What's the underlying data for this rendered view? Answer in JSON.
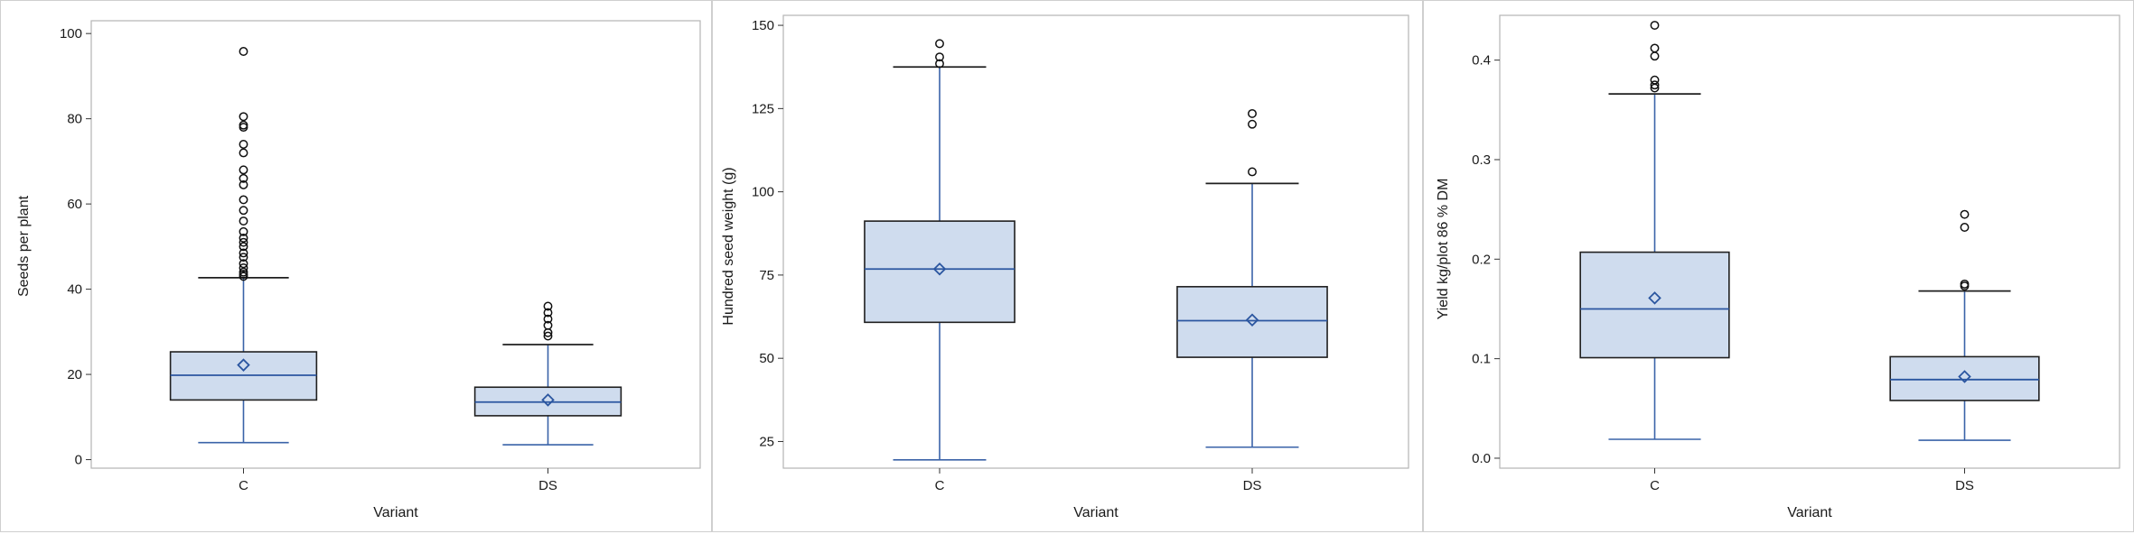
{
  "chart_data": [
    {
      "type": "box",
      "xlabel": "Variant",
      "ylabel": "Seeds per plant",
      "ylim": [
        -2,
        103
      ],
      "yticks": [
        0,
        20,
        40,
        60,
        80,
        100
      ],
      "categories": [
        "C",
        "DS"
      ],
      "boxes": [
        {
          "category": "C",
          "whisker_low": 4,
          "q1": 14,
          "median": 19.8,
          "q3": 25.3,
          "whisker_high": 42.7,
          "mean": 22.2,
          "outliers": [
            43,
            43.5,
            44,
            45,
            46,
            47.5,
            48.5,
            50,
            51,
            52,
            53.5,
            56,
            58.5,
            61,
            64.5,
            66,
            68,
            72,
            74,
            78,
            78.5,
            80.5,
            95.8
          ]
        },
        {
          "category": "DS",
          "whisker_low": 3.5,
          "q1": 10.3,
          "median": 13.5,
          "q3": 17,
          "whisker_high": 27,
          "mean": 14,
          "outliers": [
            29,
            29.8,
            31.5,
            33,
            34.5,
            36
          ]
        }
      ]
    },
    {
      "type": "box",
      "xlabel": "Variant",
      "ylabel": "Hundred seed weight (g)",
      "ylim": [
        17,
        153
      ],
      "yticks": [
        25,
        50,
        75,
        100,
        125,
        150
      ],
      "categories": [
        "C",
        "DS"
      ],
      "boxes": [
        {
          "category": "C",
          "whisker_low": 19.5,
          "q1": 60.8,
          "median": 76.8,
          "q3": 91.2,
          "whisker_high": 137.5,
          "mean": 76.8,
          "outliers": [
            138.5,
            140.5,
            144.5
          ]
        },
        {
          "category": "DS",
          "whisker_low": 23.3,
          "q1": 50.3,
          "median": 61.3,
          "q3": 71.5,
          "whisker_high": 102.5,
          "mean": 61.5,
          "outliers": [
            106,
            120.3,
            123.5
          ]
        }
      ]
    },
    {
      "type": "box",
      "xlabel": "Variant",
      "ylabel": "Yield kg/plot 86 % DM",
      "ylim": [
        -0.01,
        0.445
      ],
      "yticks": [
        0.0,
        0.1,
        0.2,
        0.3,
        0.4
      ],
      "ytick_labels": [
        "0.0",
        "0.1",
        "0.2",
        "0.3",
        "0.4"
      ],
      "categories": [
        "C",
        "DS"
      ],
      "boxes": [
        {
          "category": "C",
          "whisker_low": 0.019,
          "q1": 0.101,
          "median": 0.15,
          "q3": 0.207,
          "whisker_high": 0.366,
          "mean": 0.161,
          "outliers": [
            0.372,
            0.375,
            0.38,
            0.404,
            0.412,
            0.435
          ]
        },
        {
          "category": "DS",
          "whisker_low": 0.018,
          "q1": 0.058,
          "median": 0.079,
          "q3": 0.102,
          "whisker_high": 0.168,
          "mean": 0.082,
          "outliers": [
            0.173,
            0.175,
            0.232,
            0.245
          ]
        }
      ]
    }
  ],
  "style": {
    "box_fill": "#cfdcee",
    "box_line": "#1f1f1f",
    "whisker_line": "#3a63a8",
    "median_line": "#2b56a0",
    "mean_marker": "#2b56a0",
    "outlier_marker": "#111111",
    "frame": "#b5b5b5"
  }
}
